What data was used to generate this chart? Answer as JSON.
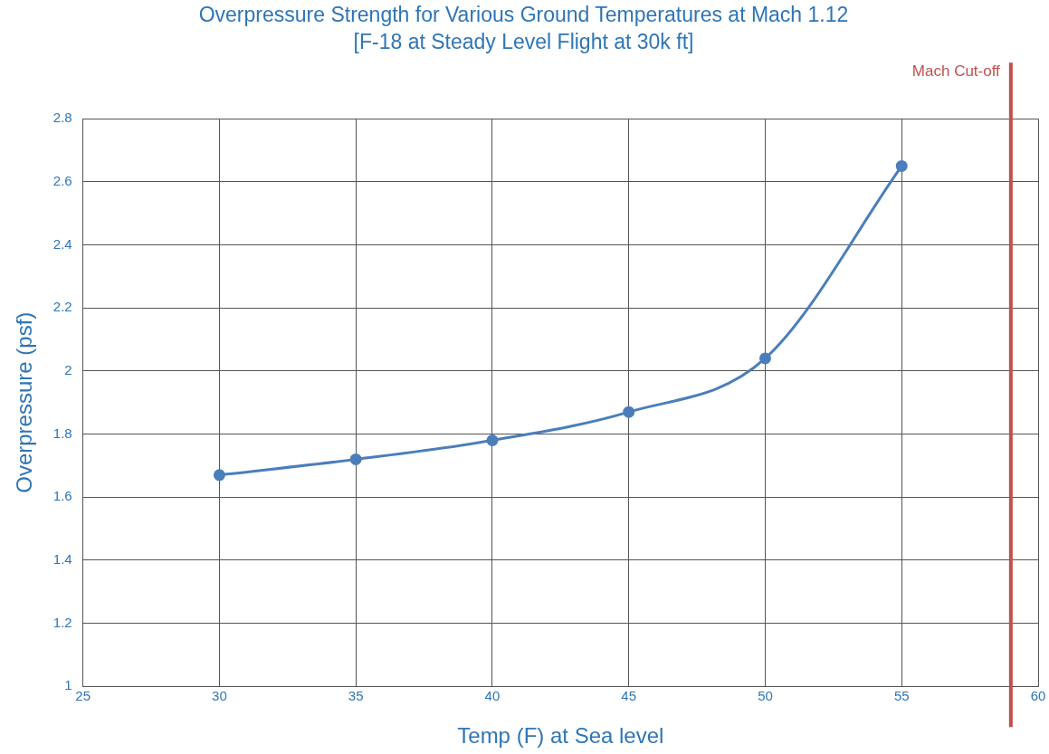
{
  "chart_data": {
    "type": "line",
    "title": "Overpressure Strength for Various Ground Temperatures at Mach 1.12",
    "subtitle": "[F-18 at Steady Level Flight at 30k ft]",
    "xlabel": "Temp (F) at Sea level",
    "ylabel": "Overpressure (psf)",
    "x": [
      30,
      35,
      40,
      45,
      50,
      55
    ],
    "series": [
      {
        "color": "#4a7ebb",
        "values": [
          1.67,
          1.72,
          1.78,
          1.87,
          2.04,
          2.65
        ]
      }
    ],
    "xlim": [
      25,
      60
    ],
    "xticks": [
      25,
      30,
      35,
      40,
      45,
      50,
      55,
      60
    ],
    "ylim": [
      1,
      2.8
    ],
    "yticks": [
      1,
      1.2,
      1.4,
      1.6,
      1.8,
      2,
      2.2,
      2.4,
      2.6,
      2.8
    ],
    "ref_lines": [
      {
        "axis": "x",
        "value": 59,
        "label": "Mach Cut-off",
        "color": "#c0504d"
      }
    ],
    "grid": true,
    "legend": false,
    "marker": "circle",
    "line_style": "solid"
  }
}
